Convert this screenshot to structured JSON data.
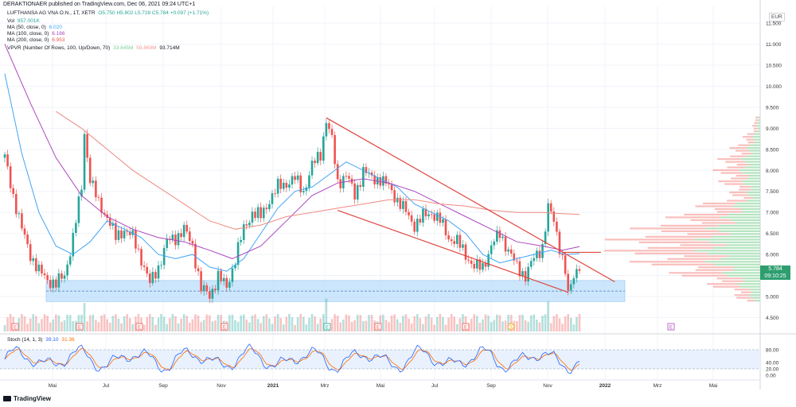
{
  "header": {
    "published": "DERAKTIONAER published on TradingView.com, Dec 06, 2021 09:24 UTC+1",
    "symbol_line": "LUFTHANSA AG VNA O.N., 1T, XETR",
    "ohlc": "O5.750  H5.802  L5.728  C5.784  +0.097 (+1.71%)",
    "vol_label": "Vol",
    "vol_value": "957.001K",
    "ma50_label": "MA (50, close, 0)",
    "ma50_value": "6.020",
    "ma100_label": "MA (100, close, 0)",
    "ma100_value": "6.186",
    "ma200_label": "MA (200, close, 0)",
    "ma200_value": "6.953",
    "vpvr_label": "VPVR (Number Of Rows, 100, Up/Down, 70)",
    "vpvr_up": "33.845M",
    "vpvr_down": "59.869M",
    "vpvr_total": "93.714M",
    "stoch_label": "Stoch (14, 1, 3)",
    "stoch_k": "39.10",
    "stoch_d": "31.36"
  },
  "currency": "EUR",
  "price_tag": {
    "price": "5.784",
    "time": "09:10:25"
  },
  "colors": {
    "up": "#26a69a",
    "down": "#ef5350",
    "ma50": "#42a5f5",
    "ma100": "#ab47bc",
    "ma200": "#ef8a80",
    "channel": "#e0453e",
    "zone": "#bfe0fb",
    "stoch_k": "#2962ff",
    "stoch_d": "#ff6d00"
  },
  "footer": {
    "logo": "TradingView"
  },
  "chart_data": {
    "type": "candlestick",
    "title": "LUFTHANSA AG VNA O.N., 1T, XETR",
    "y_axis": {
      "ticks": [
        "11.500",
        "11.000",
        "10.500",
        "10.000",
        "9.500",
        "9.000",
        "8.500",
        "8.000",
        "7.500",
        "7.000",
        "6.500",
        "6.000",
        "5.500",
        "5.000",
        "4.500"
      ],
      "range": [
        4.3,
        11.9
      ]
    },
    "x_axis": {
      "labels": [
        "Mai",
        "Jul",
        "Sep",
        "Nov",
        "2021",
        "Mrz",
        "Mai",
        "Jul",
        "Sep",
        "Nov",
        "2022",
        "Mrz",
        "Mai"
      ]
    },
    "price_path": [
      [
        0,
        8.3
      ],
      [
        3,
        7.4
      ],
      [
        6,
        6.6
      ],
      [
        9,
        6.0
      ],
      [
        12,
        5.6
      ],
      [
        15,
        5.4
      ],
      [
        18,
        5.3
      ],
      [
        21,
        5.5
      ],
      [
        24,
        6.4
      ],
      [
        27,
        7.6
      ],
      [
        28,
        8.9
      ],
      [
        30,
        7.8
      ],
      [
        33,
        7.2
      ],
      [
        36,
        6.9
      ],
      [
        39,
        6.4
      ],
      [
        42,
        6.6
      ],
      [
        45,
        6.4
      ],
      [
        48,
        5.9
      ],
      [
        51,
        5.3
      ],
      [
        54,
        5.7
      ],
      [
        57,
        6.3
      ],
      [
        60,
        6.4
      ],
      [
        63,
        6.6
      ],
      [
        66,
        6.2
      ],
      [
        69,
        5.2
      ],
      [
        72,
        5.0
      ],
      [
        75,
        5.5
      ],
      [
        78,
        5.2
      ],
      [
        81,
        5.9
      ],
      [
        84,
        6.6
      ],
      [
        87,
        7.0
      ],
      [
        90,
        6.9
      ],
      [
        93,
        7.3
      ],
      [
        96,
        7.6
      ],
      [
        99,
        7.7
      ],
      [
        102,
        7.8
      ],
      [
        105,
        7.5
      ],
      [
        108,
        8.1
      ],
      [
        111,
        8.4
      ],
      [
        113,
        9.2
      ],
      [
        115,
        8.7
      ],
      [
        117,
        7.7
      ],
      [
        120,
        7.9
      ],
      [
        123,
        7.4
      ],
      [
        126,
        8.0
      ],
      [
        129,
        7.8
      ],
      [
        132,
        7.8
      ],
      [
        135,
        7.6
      ],
      [
        138,
        7.3
      ],
      [
        141,
        7.0
      ],
      [
        144,
        6.7
      ],
      [
        147,
        6.9
      ],
      [
        150,
        7.0
      ],
      [
        153,
        6.8
      ],
      [
        156,
        6.4
      ],
      [
        159,
        6.3
      ],
      [
        162,
        6.0
      ],
      [
        165,
        5.7
      ],
      [
        168,
        5.7
      ],
      [
        171,
        6.2
      ],
      [
        174,
        6.5
      ],
      [
        177,
        6.1
      ],
      [
        180,
        5.7
      ],
      [
        183,
        5.5
      ],
      [
        186,
        5.9
      ],
      [
        189,
        6.2
      ],
      [
        191,
        7.1
      ],
      [
        193,
        6.8
      ],
      [
        195,
        6.2
      ],
      [
        197,
        5.6
      ],
      [
        198,
        5.0
      ],
      [
        200,
        5.5
      ],
      [
        202,
        5.784
      ]
    ],
    "moving_averages": {
      "ma50": [
        [
          0,
          10.3
        ],
        [
          6,
          8.4
        ],
        [
          12,
          7.0
        ],
        [
          18,
          6.2
        ],
        [
          24,
          6.0
        ],
        [
          30,
          6.3
        ],
        [
          36,
          6.8
        ],
        [
          42,
          6.6
        ],
        [
          48,
          6.4
        ],
        [
          54,
          6.0
        ],
        [
          60,
          5.9
        ],
        [
          66,
          6.0
        ],
        [
          72,
          5.7
        ],
        [
          78,
          5.6
        ],
        [
          84,
          5.9
        ],
        [
          90,
          6.5
        ],
        [
          96,
          7.1
        ],
        [
          102,
          7.5
        ],
        [
          108,
          7.6
        ],
        [
          114,
          7.9
        ],
        [
          120,
          8.2
        ],
        [
          126,
          8.0
        ],
        [
          132,
          7.8
        ],
        [
          138,
          7.6
        ],
        [
          144,
          7.2
        ],
        [
          150,
          7.0
        ],
        [
          156,
          6.8
        ],
        [
          162,
          6.5
        ],
        [
          168,
          6.0
        ],
        [
          174,
          5.8
        ],
        [
          180,
          5.9
        ],
        [
          186,
          6.0
        ],
        [
          192,
          6.1
        ],
        [
          197,
          6.0
        ],
        [
          202,
          6.02
        ]
      ],
      "ma100": [
        [
          0,
          11.0
        ],
        [
          9,
          9.6
        ],
        [
          18,
          8.3
        ],
        [
          27,
          7.4
        ],
        [
          36,
          6.9
        ],
        [
          45,
          6.6
        ],
        [
          54,
          6.4
        ],
        [
          63,
          6.3
        ],
        [
          72,
          6.1
        ],
        [
          80,
          5.9
        ],
        [
          90,
          6.2
        ],
        [
          99,
          6.8
        ],
        [
          108,
          7.4
        ],
        [
          117,
          7.7
        ],
        [
          126,
          7.8
        ],
        [
          135,
          7.7
        ],
        [
          144,
          7.5
        ],
        [
          153,
          7.2
        ],
        [
          162,
          6.9
        ],
        [
          171,
          6.6
        ],
        [
          180,
          6.3
        ],
        [
          189,
          6.2
        ],
        [
          196,
          6.1
        ],
        [
          202,
          6.186
        ]
      ],
      "ma200": [
        [
          18,
          9.4
        ],
        [
          27,
          9.0
        ],
        [
          36,
          8.5
        ],
        [
          45,
          8.0
        ],
        [
          54,
          7.6
        ],
        [
          63,
          7.2
        ],
        [
          72,
          6.8
        ],
        [
          81,
          6.6
        ],
        [
          90,
          6.7
        ],
        [
          99,
          6.9
        ],
        [
          108,
          7.0
        ],
        [
          117,
          7.1
        ],
        [
          126,
          7.2
        ],
        [
          135,
          7.3
        ],
        [
          144,
          7.3
        ],
        [
          153,
          7.2
        ],
        [
          162,
          7.15
        ],
        [
          171,
          7.05
        ],
        [
          180,
          7.0
        ],
        [
          189,
          7.0
        ],
        [
          196,
          6.97
        ],
        [
          202,
          6.953
        ]
      ]
    },
    "channel": {
      "upper": [
        [
          113,
          9.25
        ],
        [
          206,
          5.35
        ]
      ],
      "lower": [
        [
          117,
          7.05
        ],
        [
          198,
          5.1
        ]
      ]
    },
    "support_zone": [
      4.88,
      5.38
    ],
    "resistance_line": 6.05,
    "stoch": {
      "ticks": [
        "80.00",
        "40.00",
        "20.00",
        "0.00"
      ],
      "upper": 80,
      "lower": 20,
      "k_last": 39.1,
      "d_last": 31.36
    }
  }
}
